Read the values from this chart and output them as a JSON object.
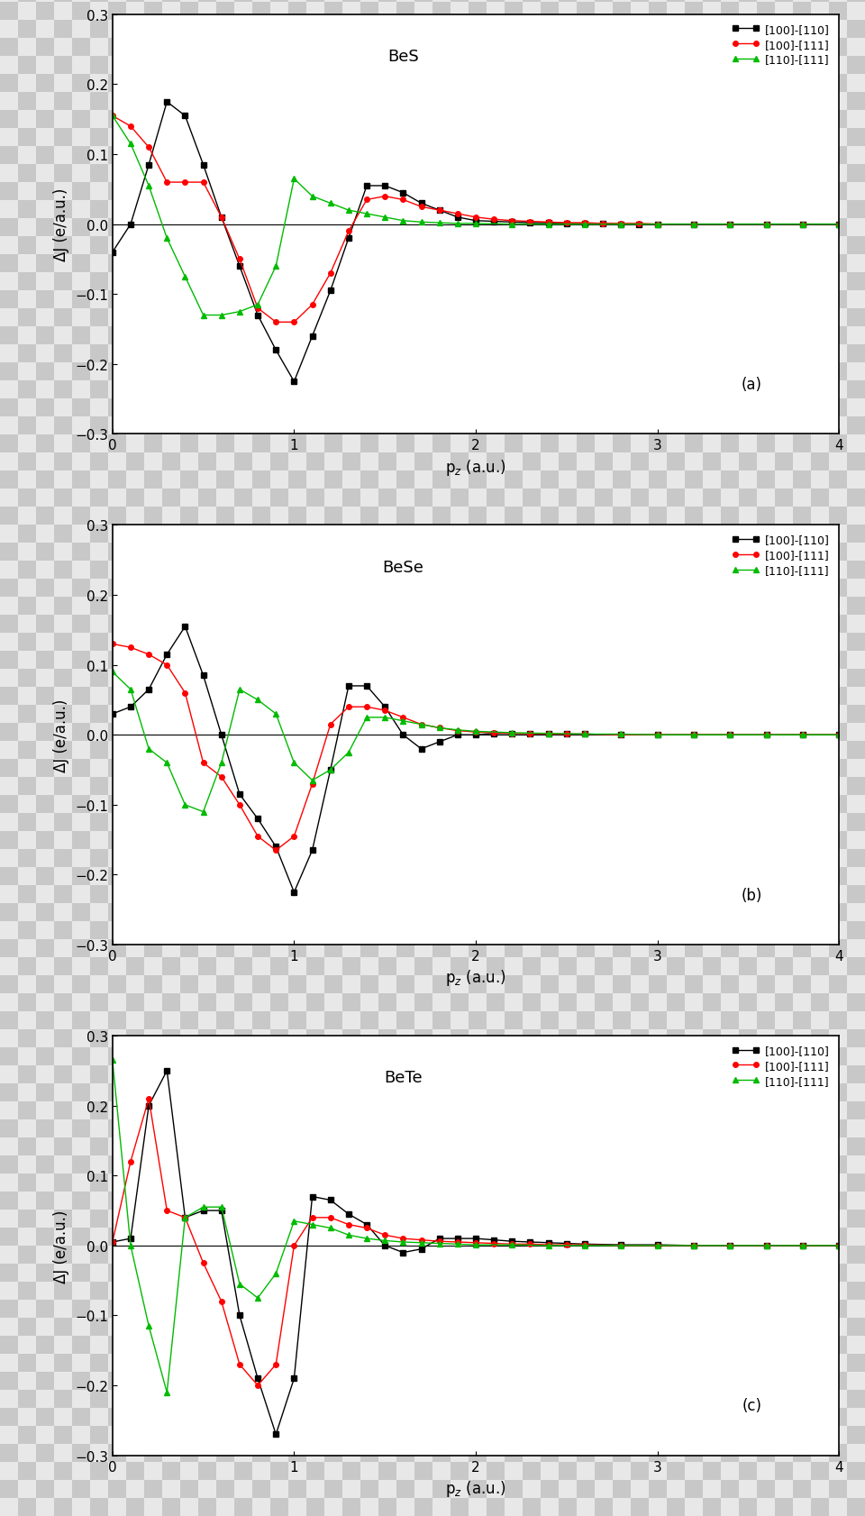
{
  "panels": [
    {
      "label": "BeS",
      "panel_id": "(a)",
      "series": {
        "black": {
          "color": "#000000",
          "marker": "s",
          "label": "[100]-[110]",
          "x": [
            0.0,
            0.1,
            0.2,
            0.3,
            0.4,
            0.5,
            0.6,
            0.7,
            0.8,
            0.9,
            1.0,
            1.1,
            1.2,
            1.3,
            1.4,
            1.5,
            1.6,
            1.7,
            1.8,
            1.9,
            2.0,
            2.1,
            2.2,
            2.3,
            2.4,
            2.5,
            2.6,
            2.7,
            2.8,
            2.9,
            3.0,
            3.2,
            3.4,
            3.6,
            3.8,
            4.0
          ],
          "y": [
            -0.04,
            0.0,
            0.085,
            0.175,
            0.155,
            0.085,
            0.01,
            -0.06,
            -0.13,
            -0.18,
            -0.225,
            -0.16,
            -0.095,
            -0.02,
            0.055,
            0.055,
            0.045,
            0.03,
            0.02,
            0.01,
            0.005,
            0.004,
            0.003,
            0.002,
            0.002,
            0.001,
            0.001,
            0.001,
            0.0,
            0.0,
            0.0,
            0.0,
            0.0,
            0.0,
            0.0,
            0.0
          ]
        },
        "red": {
          "color": "#ff0000",
          "marker": "o",
          "label": "[100]-[111]",
          "x": [
            0.0,
            0.1,
            0.2,
            0.3,
            0.4,
            0.5,
            0.6,
            0.7,
            0.8,
            0.9,
            1.0,
            1.1,
            1.2,
            1.3,
            1.4,
            1.5,
            1.6,
            1.7,
            1.8,
            1.9,
            2.0,
            2.1,
            2.2,
            2.3,
            2.4,
            2.5,
            2.6,
            2.7,
            2.8,
            2.9,
            3.0,
            3.2,
            3.4,
            3.6,
            3.8,
            4.0
          ],
          "y": [
            0.155,
            0.14,
            0.11,
            0.06,
            0.06,
            0.06,
            0.01,
            -0.05,
            -0.12,
            -0.14,
            -0.14,
            -0.115,
            -0.07,
            -0.01,
            0.035,
            0.04,
            0.035,
            0.025,
            0.02,
            0.015,
            0.01,
            0.007,
            0.005,
            0.004,
            0.003,
            0.002,
            0.002,
            0.001,
            0.001,
            0.001,
            0.0,
            0.0,
            0.0,
            0.0,
            0.0,
            0.0
          ]
        },
        "green": {
          "color": "#00bb00",
          "marker": "^",
          "label": "[110]-[111]",
          "x": [
            0.0,
            0.1,
            0.2,
            0.3,
            0.4,
            0.5,
            0.6,
            0.7,
            0.8,
            0.9,
            1.0,
            1.1,
            1.2,
            1.3,
            1.4,
            1.5,
            1.6,
            1.7,
            1.8,
            1.9,
            2.0,
            2.2,
            2.4,
            2.6,
            2.8,
            3.0,
            3.2,
            3.4,
            3.6,
            3.8,
            4.0
          ],
          "y": [
            0.155,
            0.115,
            0.055,
            -0.02,
            -0.075,
            -0.13,
            -0.13,
            -0.125,
            -0.115,
            -0.06,
            0.065,
            0.04,
            0.03,
            0.02,
            0.015,
            0.01,
            0.005,
            0.003,
            0.002,
            0.001,
            0.001,
            0.0,
            0.0,
            0.0,
            0.0,
            0.0,
            0.0,
            0.0,
            0.0,
            0.0,
            0.0
          ]
        }
      }
    },
    {
      "label": "BeSe",
      "panel_id": "(b)",
      "series": {
        "black": {
          "color": "#000000",
          "marker": "s",
          "label": "[100]-[110]",
          "x": [
            0.0,
            0.1,
            0.2,
            0.3,
            0.4,
            0.5,
            0.6,
            0.7,
            0.8,
            0.9,
            1.0,
            1.1,
            1.2,
            1.3,
            1.4,
            1.5,
            1.6,
            1.7,
            1.8,
            1.9,
            2.0,
            2.1,
            2.2,
            2.3,
            2.4,
            2.5,
            2.6,
            2.8,
            3.0,
            3.2,
            3.4,
            3.6,
            3.8,
            4.0
          ],
          "y": [
            0.03,
            0.04,
            0.065,
            0.115,
            0.155,
            0.085,
            0.0,
            -0.085,
            -0.12,
            -0.16,
            -0.225,
            -0.165,
            -0.05,
            0.07,
            0.07,
            0.04,
            0.0,
            -0.02,
            -0.01,
            0.0,
            0.0,
            0.002,
            0.002,
            0.002,
            0.001,
            0.001,
            0.001,
            0.0,
            0.0,
            0.0,
            0.0,
            0.0,
            0.0,
            0.0
          ]
        },
        "red": {
          "color": "#ff0000",
          "marker": "o",
          "label": "[100]-[111]",
          "x": [
            0.0,
            0.1,
            0.2,
            0.3,
            0.4,
            0.5,
            0.6,
            0.7,
            0.8,
            0.9,
            1.0,
            1.1,
            1.2,
            1.3,
            1.4,
            1.5,
            1.6,
            1.7,
            1.8,
            1.9,
            2.0,
            2.1,
            2.2,
            2.3,
            2.4,
            2.5,
            2.6,
            2.8,
            3.0,
            3.2,
            3.4,
            3.6,
            3.8,
            4.0
          ],
          "y": [
            0.13,
            0.125,
            0.115,
            0.1,
            0.06,
            -0.04,
            -0.06,
            -0.1,
            -0.145,
            -0.165,
            -0.145,
            -0.07,
            0.015,
            0.04,
            0.04,
            0.035,
            0.025,
            0.015,
            0.01,
            0.006,
            0.004,
            0.003,
            0.002,
            0.002,
            0.001,
            0.001,
            0.001,
            0.0,
            0.0,
            0.0,
            0.0,
            0.0,
            0.0,
            0.0
          ]
        },
        "green": {
          "color": "#00bb00",
          "marker": "^",
          "label": "[110]-[111]",
          "x": [
            0.0,
            0.1,
            0.2,
            0.3,
            0.4,
            0.5,
            0.6,
            0.7,
            0.8,
            0.9,
            1.0,
            1.1,
            1.2,
            1.3,
            1.4,
            1.5,
            1.6,
            1.7,
            1.8,
            1.9,
            2.0,
            2.2,
            2.4,
            2.6,
            2.8,
            3.0,
            3.2,
            3.4,
            3.6,
            3.8,
            4.0
          ],
          "y": [
            0.09,
            0.065,
            -0.02,
            -0.04,
            -0.1,
            -0.11,
            -0.04,
            0.065,
            0.05,
            0.03,
            -0.04,
            -0.065,
            -0.05,
            -0.025,
            0.025,
            0.025,
            0.02,
            0.015,
            0.01,
            0.007,
            0.005,
            0.003,
            0.002,
            0.001,
            0.001,
            0.0,
            0.0,
            0.0,
            0.0,
            0.0,
            0.0
          ]
        }
      }
    },
    {
      "label": "BeTe",
      "panel_id": "(c)",
      "series": {
        "black": {
          "color": "#000000",
          "marker": "s",
          "label": "[100]-[110]",
          "x": [
            0.0,
            0.1,
            0.2,
            0.3,
            0.4,
            0.5,
            0.6,
            0.7,
            0.8,
            0.9,
            1.0,
            1.1,
            1.2,
            1.3,
            1.4,
            1.5,
            1.6,
            1.7,
            1.8,
            1.9,
            2.0,
            2.1,
            2.2,
            2.3,
            2.4,
            2.5,
            2.6,
            2.8,
            3.0,
            3.2,
            3.4,
            3.6,
            3.8,
            4.0
          ],
          "y": [
            0.005,
            0.01,
            0.2,
            0.25,
            0.04,
            0.05,
            0.05,
            -0.1,
            -0.19,
            -0.27,
            -0.19,
            0.07,
            0.065,
            0.045,
            0.03,
            0.0,
            -0.01,
            -0.005,
            0.01,
            0.01,
            0.01,
            0.008,
            0.006,
            0.005,
            0.004,
            0.003,
            0.002,
            0.001,
            0.001,
            0.0,
            0.0,
            0.0,
            0.0,
            0.0
          ]
        },
        "red": {
          "color": "#ff0000",
          "marker": "o",
          "label": "[100]-[111]",
          "x": [
            0.0,
            0.1,
            0.2,
            0.3,
            0.4,
            0.5,
            0.6,
            0.7,
            0.8,
            0.9,
            1.0,
            1.1,
            1.2,
            1.3,
            1.4,
            1.5,
            1.6,
            1.7,
            1.8,
            1.9,
            2.0,
            2.1,
            2.2,
            2.3,
            2.4,
            2.5,
            2.6,
            2.8,
            3.0,
            3.2,
            3.4,
            3.6,
            3.8,
            4.0
          ],
          "y": [
            0.005,
            0.12,
            0.21,
            0.05,
            0.04,
            -0.025,
            -0.08,
            -0.17,
            -0.2,
            -0.17,
            0.0,
            0.04,
            0.04,
            0.03,
            0.025,
            0.015,
            0.01,
            0.008,
            0.006,
            0.005,
            0.004,
            0.003,
            0.002,
            0.002,
            0.001,
            0.001,
            0.001,
            0.0,
            0.0,
            0.0,
            0.0,
            0.0,
            0.0,
            0.0
          ]
        },
        "green": {
          "color": "#00bb00",
          "marker": "^",
          "label": "[110]-[111]",
          "x": [
            0.0,
            0.1,
            0.2,
            0.3,
            0.4,
            0.5,
            0.6,
            0.7,
            0.8,
            0.9,
            1.0,
            1.1,
            1.2,
            1.3,
            1.4,
            1.5,
            1.6,
            1.7,
            1.8,
            1.9,
            2.0,
            2.2,
            2.4,
            2.6,
            2.8,
            3.0,
            3.2,
            3.4,
            3.6,
            3.8,
            4.0
          ],
          "y": [
            0.265,
            0.0,
            -0.115,
            -0.21,
            0.04,
            0.055,
            0.055,
            -0.055,
            -0.075,
            -0.04,
            0.035,
            0.03,
            0.025,
            0.015,
            0.01,
            0.007,
            0.005,
            0.004,
            0.003,
            0.002,
            0.001,
            0.001,
            0.0,
            0.0,
            0.0,
            0.0,
            0.0,
            0.0,
            0.0,
            0.0,
            0.0
          ]
        }
      }
    }
  ],
  "ylabel": "ΔJ (e/a.u.)",
  "xlabel_latex": "p$_z$ (a.u.)",
  "ylim": [
    -0.3,
    0.3
  ],
  "xlim": [
    0,
    4
  ],
  "yticks": [
    -0.3,
    -0.2,
    -0.1,
    0.0,
    0.1,
    0.2,
    0.3
  ],
  "xticks": [
    0,
    1,
    2,
    3,
    4
  ],
  "linewidth": 1.0,
  "markersize": 4,
  "legend_fontsize": 9,
  "tick_fontsize": 11,
  "axis_label_fontsize": 12,
  "panel_label_fontsize": 12,
  "title_fontsize": 13,
  "checker_size": 20,
  "checker_color1": "#c8c8c8",
  "checker_color2": "#e8e8e8"
}
